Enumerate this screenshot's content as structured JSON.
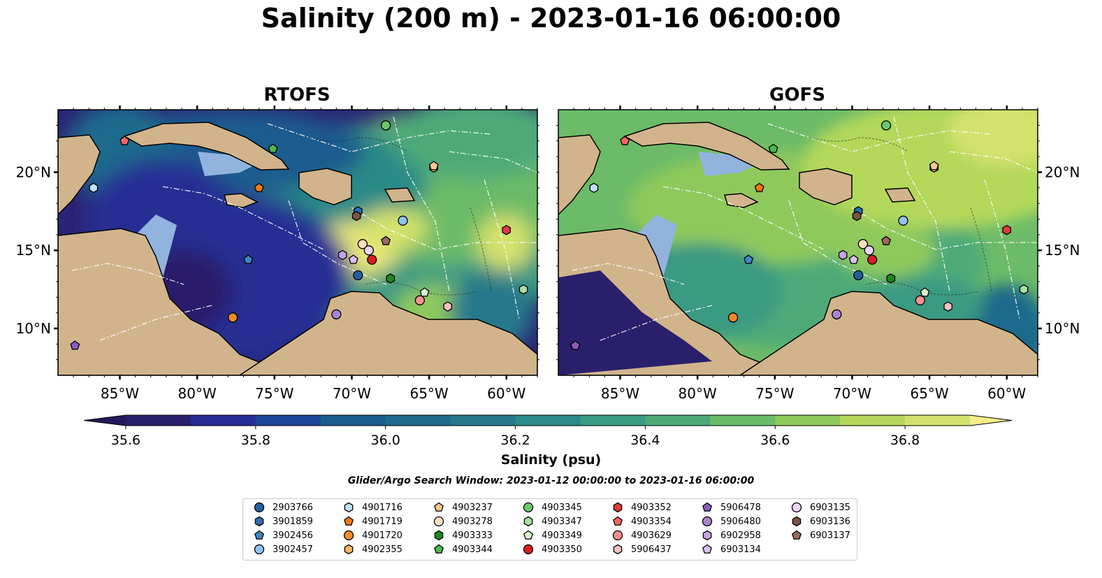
{
  "title": "Salinity (200 m) - 2023-01-16 06:00:00",
  "panels": [
    {
      "title": "RTOFS"
    },
    {
      "title": "GOFS"
    }
  ],
  "colorbar": {
    "label": "Salinity (psu)",
    "min": 35.6,
    "max": 36.9,
    "ticks": [
      "35.6",
      "35.8",
      "36.0",
      "36.2",
      "36.4",
      "36.6",
      "36.8"
    ],
    "extend": "both",
    "colors": [
      "#2a1f6b",
      "#262e93",
      "#1c4698",
      "#1b5c8e",
      "#1e6a8c",
      "#25798a",
      "#2c8a87",
      "#3a9a82",
      "#4daa78",
      "#6cbb68",
      "#8fc95b",
      "#b3d85a",
      "#d4e26c"
    ],
    "extend_low": "#25185e",
    "extend_high": "#f4ec8a"
  },
  "search_window": "Glider/Argo Search Window: 2023-01-12 00:00:00 to 2023-01-16 06:00:00",
  "map": {
    "lon_range": [
      -89,
      -58
    ],
    "lat_range": [
      7,
      24
    ],
    "lon_ticks": [
      "85°W",
      "80°W",
      "75°W",
      "70°W",
      "65°W",
      "60°W"
    ],
    "lat_ticks": [
      "10°N",
      "15°N",
      "20°N"
    ],
    "land_color": "#d1b48c",
    "shelf_color": "#93b3df"
  },
  "chart_data": {
    "type": "scatter",
    "title": "Salinity (200 m) - 2023-01-16 06:00:00",
    "series": [
      {
        "name": "2903766",
        "marker": "circle",
        "color": "#1f5fa5",
        "lon": -69.6,
        "lat": 13.4
      },
      {
        "name": "3901859",
        "marker": "hexagon",
        "color": "#2f6db5",
        "lon": -69.6,
        "lat": 17.5
      },
      {
        "name": "3902456",
        "marker": "pentagon",
        "color": "#3f86c8",
        "lon": -76.7,
        "lat": 14.4
      },
      {
        "name": "3902457",
        "marker": "circle",
        "color": "#8ec3ee",
        "lon": -66.7,
        "lat": 16.9
      },
      {
        "name": "4901716",
        "marker": "hexagon",
        "color": "#bfe3f7",
        "lon": -86.7,
        "lat": 19.0
      },
      {
        "name": "4901719",
        "marker": "pentagon",
        "color": "#f07a10",
        "lon": -76.0,
        "lat": 19.0
      },
      {
        "name": "4901720",
        "marker": "circle",
        "color": "#f08a2a",
        "lon": -77.7,
        "lat": 10.7
      },
      {
        "name": "4902355",
        "marker": "hexagon",
        "color": "#f6b56a",
        "lon": -64.7,
        "lat": 20.3
      },
      {
        "name": "4903237",
        "marker": "pentagon",
        "color": "#f8c890",
        "lon": -64.7,
        "lat": 20.4
      },
      {
        "name": "4903278",
        "marker": "circle",
        "color": "#fbe0c0",
        "lon": -69.3,
        "lat": 15.4
      },
      {
        "name": "4903333",
        "marker": "hexagon",
        "color": "#1c8a1c",
        "lon": -67.5,
        "lat": 13.2
      },
      {
        "name": "4903344",
        "marker": "pentagon",
        "color": "#4db84d",
        "lon": -75.1,
        "lat": 21.5
      },
      {
        "name": "4903345",
        "marker": "circle",
        "color": "#6cc86c",
        "lon": -67.8,
        "lat": 23.0
      },
      {
        "name": "4903347",
        "marker": "hexagon",
        "color": "#a8e0a0",
        "lon": -58.9,
        "lat": 12.5
      },
      {
        "name": "4903349",
        "marker": "pentagon",
        "color": "#d8f6d0",
        "lon": -65.3,
        "lat": 12.3
      },
      {
        "name": "4903350",
        "marker": "circle",
        "color": "#d62020",
        "lon": -68.7,
        "lat": 14.4
      },
      {
        "name": "4903352",
        "marker": "hexagon",
        "color": "#e03c3c",
        "lon": -60.0,
        "lat": 16.3
      },
      {
        "name": "4903354",
        "marker": "pentagon",
        "color": "#ef6868",
        "lon": -84.7,
        "lat": 22.0
      },
      {
        "name": "4903629",
        "marker": "circle",
        "color": "#f59090",
        "lon": -65.6,
        "lat": 11.8
      },
      {
        "name": "5906437",
        "marker": "hexagon",
        "color": "#fbc0c0",
        "lon": -63.8,
        "lat": 11.4
      },
      {
        "name": "5906478",
        "marker": "pentagon",
        "color": "#8c5cc0",
        "lon": -87.9,
        "lat": 8.9
      },
      {
        "name": "5906480",
        "marker": "circle",
        "color": "#a684d0",
        "lon": -71.0,
        "lat": 10.9
      },
      {
        "name": "6902958",
        "marker": "hexagon",
        "color": "#c4a4e4",
        "lon": -70.6,
        "lat": 14.7
      },
      {
        "name": "6903134",
        "marker": "pentagon",
        "color": "#d8c0f0",
        "lon": -69.9,
        "lat": 14.4
      },
      {
        "name": "6903135",
        "marker": "circle",
        "color": "#ecd4f8",
        "lon": -68.9,
        "lat": 15.0
      },
      {
        "name": "6903136",
        "marker": "hexagon",
        "color": "#7a5248",
        "lon": -69.7,
        "lat": 17.2
      },
      {
        "name": "6903137",
        "marker": "pentagon",
        "color": "#9a6a5c",
        "lon": -67.8,
        "lat": 15.6
      }
    ]
  }
}
